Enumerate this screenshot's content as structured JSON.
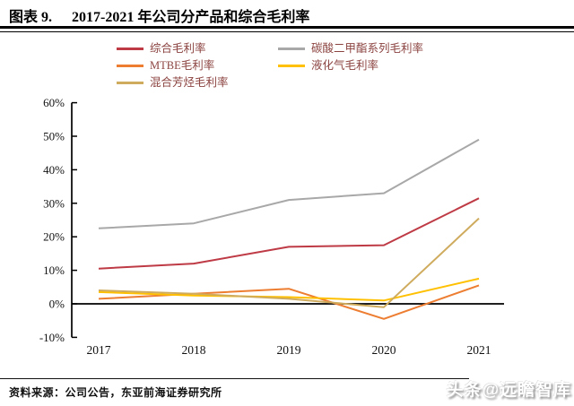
{
  "header": {
    "figure_label": "图表 9.",
    "title": "2017-2021 年公司分产品和综合毛利率"
  },
  "chart_data": {
    "type": "line",
    "title": "2017-2021 年公司分产品和综合毛利率",
    "x_labels": [
      "2017",
      "2018",
      "2019",
      "2020",
      "2021"
    ],
    "series": [
      {
        "name": "综合毛利率",
        "color": "#BE3A45",
        "values": [
          10.5,
          12,
          17,
          17.5,
          31.5
        ]
      },
      {
        "name": "碳酸二甲酯系列毛利率",
        "color": "#A8A8A8",
        "values": [
          22.5,
          24,
          31,
          33,
          49
        ]
      },
      {
        "name": "MTBE毛利率",
        "color": "#ED7D31",
        "values": [
          1.5,
          3,
          4.5,
          -4.5,
          5.5
        ]
      },
      {
        "name": "液化气毛利率",
        "color": "#FFC000",
        "values": [
          3.5,
          2.5,
          2,
          1,
          7.5
        ]
      },
      {
        "name": "混合芳烃毛利率",
        "color": "#CFAB5E",
        "values": [
          4,
          3,
          1.5,
          -1,
          25.5
        ]
      }
    ],
    "ylim": [
      -10,
      60
    ],
    "ytick_step": 10,
    "ytick_labels": [
      "60%",
      "50%",
      "40%",
      "30%",
      "20%",
      "10%",
      "0%",
      "-10%"
    ],
    "ytick_format": "percent",
    "zero_baseline": true,
    "grid": false,
    "legend_position": "top-left"
  },
  "footer": {
    "source": "资料来源：公司公告，东亚前海证券研究所",
    "watermark": "头条@远瞻智库"
  },
  "colors": {
    "legend_text": "#8B4340",
    "axis": "#000000",
    "rule": "#000000"
  }
}
